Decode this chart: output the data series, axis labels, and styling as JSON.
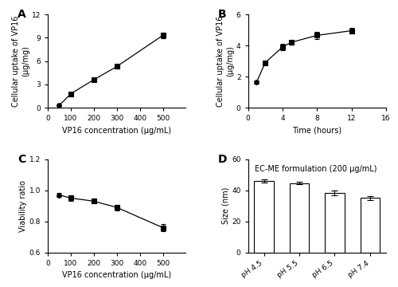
{
  "A": {
    "x": [
      50,
      100,
      200,
      300,
      500
    ],
    "y": [
      0.3,
      1.8,
      3.6,
      5.3,
      9.3
    ],
    "yerr": [
      0.1,
      0.15,
      0.15,
      0.25,
      0.35
    ],
    "xlabel": "VP16 concentration (μg/mL)",
    "ylabel": "Cellular uptake of VP16\n(μg/mg)",
    "xlim": [
      0,
      600
    ],
    "ylim": [
      0,
      12
    ],
    "xticks": [
      0,
      100,
      200,
      300,
      400,
      500
    ],
    "yticks": [
      0,
      3,
      6,
      9,
      12
    ],
    "label": "A"
  },
  "B": {
    "x": [
      1,
      2,
      4,
      5,
      8,
      12
    ],
    "y": [
      1.65,
      2.9,
      3.9,
      4.2,
      4.65,
      4.95
    ],
    "yerr": [
      0.08,
      0.12,
      0.18,
      0.15,
      0.22,
      0.2
    ],
    "xlabel": "Time (hours)",
    "ylabel": "Cellular uptake of VP16\n(μg/mg)",
    "xlim": [
      0,
      16
    ],
    "ylim": [
      0,
      6
    ],
    "xticks": [
      0,
      4,
      8,
      12,
      16
    ],
    "yticks": [
      0,
      2,
      4,
      6
    ],
    "label": "B"
  },
  "C": {
    "x": [
      50,
      100,
      200,
      300,
      500
    ],
    "y": [
      0.97,
      0.95,
      0.93,
      0.89,
      0.76
    ],
    "yerr": [
      0.015,
      0.02,
      0.015,
      0.018,
      0.025
    ],
    "xlabel": "VP16 concentration (μg/mL)",
    "ylabel": "Viability ratio",
    "xlim": [
      0,
      600
    ],
    "ylim": [
      0.6,
      1.2
    ],
    "xticks": [
      0,
      100,
      200,
      300,
      400,
      500
    ],
    "yticks": [
      0.6,
      0.8,
      1.0,
      1.2
    ],
    "label": "C"
  },
  "D": {
    "categories": [
      "pH 4.5",
      "pH 5.5",
      "pH 6.5",
      "pH 7.4"
    ],
    "values": [
      46.0,
      44.5,
      38.5,
      35.0
    ],
    "yerr": [
      1.2,
      0.8,
      1.5,
      1.5
    ],
    "ylabel": "Size (nm)",
    "ylim": [
      0,
      60
    ],
    "yticks": [
      0,
      20,
      40,
      60
    ],
    "title": "EC-ME formulation (200 μg/mL)",
    "bar_color": "white",
    "bar_edgecolor": "black",
    "label": "D"
  },
  "line_color": "black",
  "marker_color": "black",
  "marker_size": 4,
  "label_fontsize": 7,
  "tick_fontsize": 6.5,
  "panel_label_fontsize": 10
}
